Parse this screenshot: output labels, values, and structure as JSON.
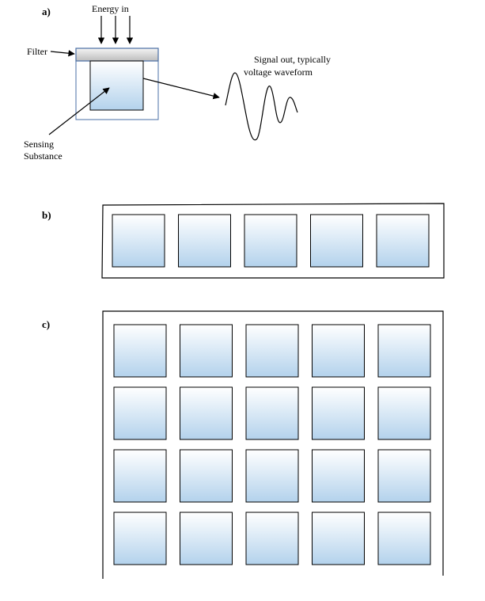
{
  "panel_a": {
    "label": "a)",
    "energy_label": "Energy in",
    "filter_label": "Filter",
    "sensing_line1": "Sensing",
    "sensing_line2": "Substance",
    "signal_line1": "Signal out, typically",
    "signal_line2": "voltage waveform"
  },
  "panel_b": {
    "label": "b)",
    "rows": 1,
    "cols": 5
  },
  "panel_c": {
    "label": "c)",
    "rows": 4,
    "cols": 5
  },
  "colors": {
    "cell_top": "#ffffff",
    "cell_bottom": "#b3d2ec",
    "filter_top": "#f2f2f2",
    "filter_bottom": "#bcbcbc",
    "sensor_border": "#4a6fa5"
  }
}
